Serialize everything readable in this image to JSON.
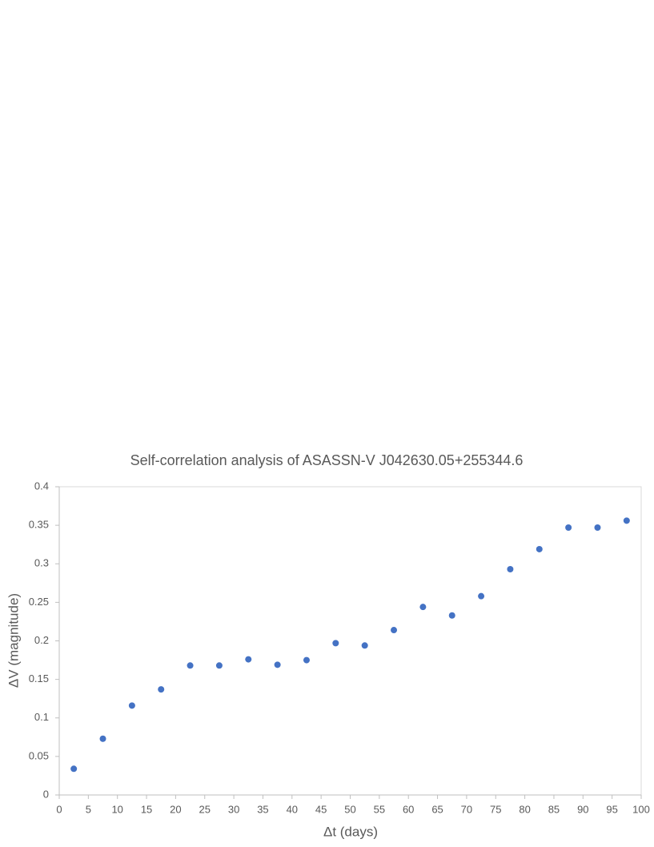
{
  "chart_data": {
    "type": "scatter",
    "title": "Self-correlation analysis of ASASSN-V J042630.05+255344.6",
    "x_label": "Δt (days)",
    "y_label": "ΔV (magnitude)",
    "x": [
      2.5,
      7.5,
      12.5,
      17.5,
      22.5,
      27.5,
      32.5,
      37.5,
      42.5,
      47.5,
      52.5,
      57.5,
      62.5,
      67.5,
      72.5,
      77.5,
      82.5,
      87.5,
      92.5,
      97.5
    ],
    "values": [
      0.034,
      0.073,
      0.116,
      0.137,
      0.168,
      0.168,
      0.176,
      0.169,
      0.175,
      0.197,
      0.194,
      0.214,
      0.244,
      0.233,
      0.258,
      0.293,
      0.319,
      0.347,
      0.347,
      0.356
    ],
    "color": "#4472c4",
    "xlim": [
      0,
      100
    ],
    "xticks": [
      0,
      5,
      10,
      15,
      20,
      25,
      30,
      35,
      40,
      45,
      50,
      55,
      60,
      65,
      70,
      75,
      80,
      85,
      90,
      95,
      100
    ],
    "ylim": [
      0,
      0.4
    ],
    "yticks": [
      0,
      0.05,
      0.1,
      0.15,
      0.2,
      0.25,
      0.3,
      0.35,
      0.4
    ],
    "grid": false
  }
}
